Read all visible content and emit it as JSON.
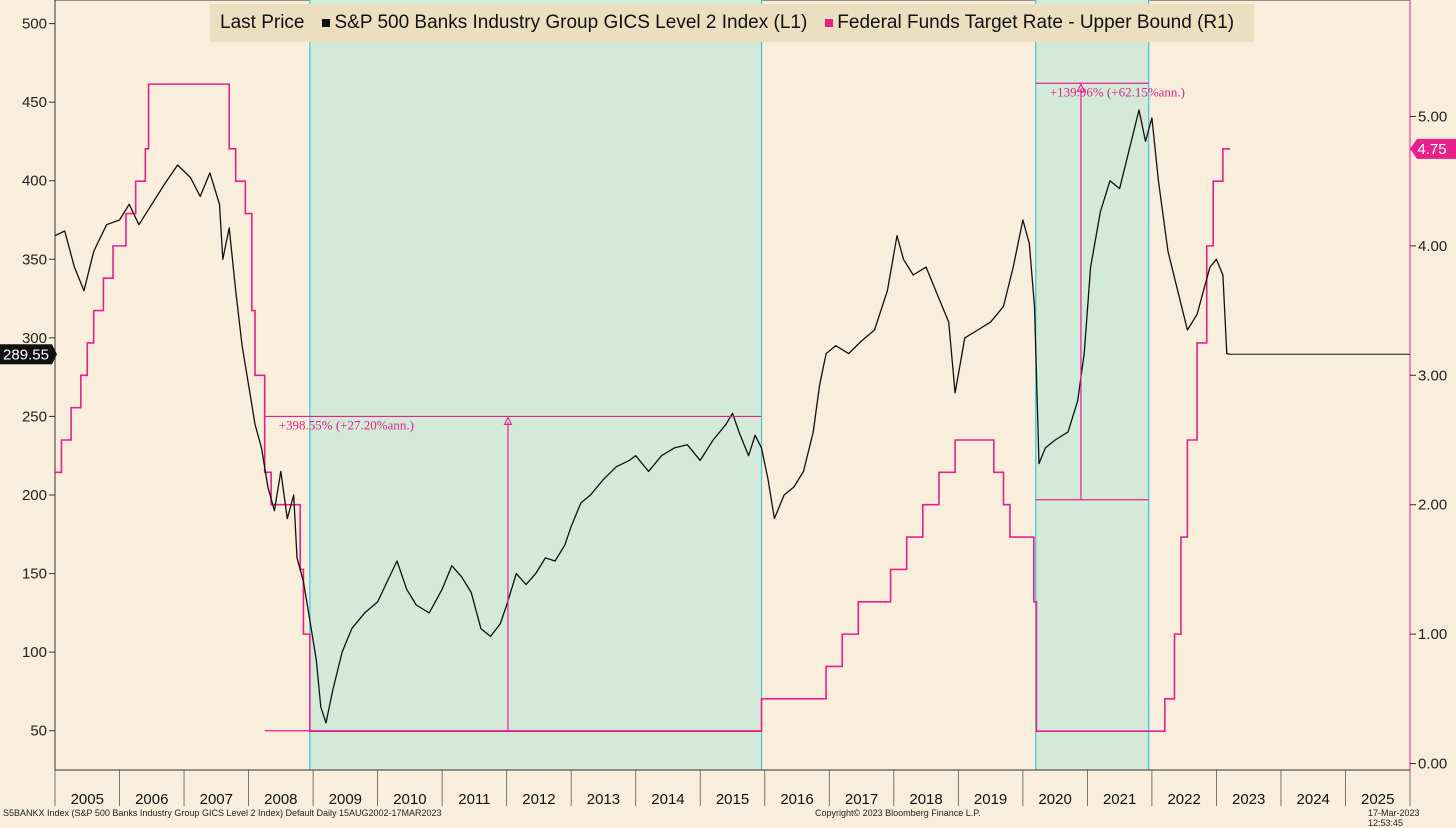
{
  "chart_data": {
    "type": "line",
    "legend": {
      "title": "Last Price",
      "series1_label": "S&P 500 Banks Industry Group GICS Level 2 Index  (L1)",
      "series2_label": "Federal Funds Target Rate - Upper Bound  (R1)"
    },
    "colors": {
      "index": "#111111",
      "rate": "#e8208c",
      "shade": "#d3ead8",
      "shade_border": "#3fc4d6",
      "background": "#f8eedb"
    },
    "x_axis": {
      "start": 2005,
      "end": 2026,
      "year_labels": [
        "2005",
        "2006",
        "2007",
        "2008",
        "2009",
        "2010",
        "2011",
        "2012",
        "2013",
        "2014",
        "2015",
        "2016",
        "2017",
        "2018",
        "2019",
        "2020",
        "2021",
        "2022",
        "2023",
        "2024",
        "2025"
      ]
    },
    "left_axis": {
      "ylim": [
        25,
        515
      ],
      "ticks": [
        "50",
        "100",
        "150",
        "200",
        "250",
        "300",
        "350",
        "400",
        "450",
        "500"
      ],
      "last_value_label": "289.55",
      "last_value": 289.55
    },
    "right_axis": {
      "ylim": [
        -0.05,
        5.9
      ],
      "ticks": [
        "0.00",
        "1.00",
        "2.00",
        "3.00",
        "4.00",
        "5.00"
      ],
      "last_value_label": "4.75",
      "last_value": 4.75
    },
    "shaded_periods": [
      {
        "start": 2008.95,
        "end": 2015.95
      },
      {
        "start": 2020.2,
        "end": 2021.95
      }
    ],
    "series": [
      {
        "name": "S&P 500 Banks Industry Group GICS Level 2 Index  (L1)",
        "points": [
          [
            2005.0,
            365
          ],
          [
            2005.15,
            368
          ],
          [
            2005.3,
            345
          ],
          [
            2005.45,
            330
          ],
          [
            2005.6,
            355
          ],
          [
            2005.8,
            372
          ],
          [
            2006.0,
            375
          ],
          [
            2006.15,
            385
          ],
          [
            2006.3,
            372
          ],
          [
            2006.5,
            385
          ],
          [
            2006.7,
            398
          ],
          [
            2006.9,
            410
          ],
          [
            2007.1,
            402
          ],
          [
            2007.25,
            390
          ],
          [
            2007.4,
            405
          ],
          [
            2007.55,
            385
          ],
          [
            2007.6,
            350
          ],
          [
            2007.7,
            370
          ],
          [
            2007.8,
            330
          ],
          [
            2007.9,
            295
          ],
          [
            2008.0,
            270
          ],
          [
            2008.1,
            245
          ],
          [
            2008.2,
            230
          ],
          [
            2008.3,
            205
          ],
          [
            2008.4,
            190
          ],
          [
            2008.5,
            215
          ],
          [
            2008.6,
            185
          ],
          [
            2008.7,
            200
          ],
          [
            2008.75,
            160
          ],
          [
            2008.85,
            145
          ],
          [
            2008.95,
            120
          ],
          [
            2009.05,
            95
          ],
          [
            2009.12,
            65
          ],
          [
            2009.2,
            55
          ],
          [
            2009.3,
            75
          ],
          [
            2009.45,
            100
          ],
          [
            2009.6,
            115
          ],
          [
            2009.8,
            125
          ],
          [
            2010.0,
            132
          ],
          [
            2010.15,
            145
          ],
          [
            2010.3,
            158
          ],
          [
            2010.45,
            140
          ],
          [
            2010.6,
            130
          ],
          [
            2010.8,
            125
          ],
          [
            2011.0,
            140
          ],
          [
            2011.15,
            155
          ],
          [
            2011.3,
            148
          ],
          [
            2011.45,
            138
          ],
          [
            2011.6,
            115
          ],
          [
            2011.75,
            110
          ],
          [
            2011.9,
            118
          ],
          [
            2012.0,
            130
          ],
          [
            2012.15,
            150
          ],
          [
            2012.3,
            143
          ],
          [
            2012.45,
            150
          ],
          [
            2012.6,
            160
          ],
          [
            2012.75,
            158
          ],
          [
            2012.9,
            168
          ],
          [
            2013.0,
            180
          ],
          [
            2013.15,
            195
          ],
          [
            2013.3,
            200
          ],
          [
            2013.5,
            210
          ],
          [
            2013.7,
            218
          ],
          [
            2013.9,
            222
          ],
          [
            2014.0,
            225
          ],
          [
            2014.2,
            215
          ],
          [
            2014.4,
            225
          ],
          [
            2014.6,
            230
          ],
          [
            2014.8,
            232
          ],
          [
            2015.0,
            222
          ],
          [
            2015.2,
            235
          ],
          [
            2015.4,
            245
          ],
          [
            2015.5,
            252
          ],
          [
            2015.6,
            240
          ],
          [
            2015.75,
            225
          ],
          [
            2015.85,
            238
          ],
          [
            2015.95,
            230
          ],
          [
            2016.05,
            210
          ],
          [
            2016.15,
            185
          ],
          [
            2016.3,
            200
          ],
          [
            2016.45,
            205
          ],
          [
            2016.6,
            215
          ],
          [
            2016.75,
            240
          ],
          [
            2016.85,
            270
          ],
          [
            2016.95,
            290
          ],
          [
            2017.1,
            295
          ],
          [
            2017.3,
            290
          ],
          [
            2017.5,
            298
          ],
          [
            2017.7,
            305
          ],
          [
            2017.9,
            330
          ],
          [
            2018.05,
            365
          ],
          [
            2018.15,
            350
          ],
          [
            2018.3,
            340
          ],
          [
            2018.5,
            345
          ],
          [
            2018.7,
            325
          ],
          [
            2018.85,
            310
          ],
          [
            2018.95,
            265
          ],
          [
            2019.1,
            300
          ],
          [
            2019.3,
            305
          ],
          [
            2019.5,
            310
          ],
          [
            2019.7,
            320
          ],
          [
            2019.85,
            345
          ],
          [
            2020.0,
            375
          ],
          [
            2020.1,
            360
          ],
          [
            2020.18,
            320
          ],
          [
            2020.25,
            220
          ],
          [
            2020.35,
            230
          ],
          [
            2020.5,
            235
          ],
          [
            2020.7,
            240
          ],
          [
            2020.85,
            260
          ],
          [
            2020.95,
            290
          ],
          [
            2021.05,
            345
          ],
          [
            2021.2,
            380
          ],
          [
            2021.35,
            400
          ],
          [
            2021.5,
            395
          ],
          [
            2021.65,
            420
          ],
          [
            2021.8,
            445
          ],
          [
            2021.9,
            425
          ],
          [
            2022.0,
            440
          ],
          [
            2022.1,
            400
          ],
          [
            2022.25,
            355
          ],
          [
            2022.4,
            330
          ],
          [
            2022.55,
            305
          ],
          [
            2022.7,
            315
          ],
          [
            2022.8,
            330
          ],
          [
            2022.9,
            345
          ],
          [
            2023.0,
            350
          ],
          [
            2023.1,
            340
          ],
          [
            2023.16,
            290
          ],
          [
            2023.21,
            289.55
          ]
        ],
        "last_flat_to": 2026.0
      },
      {
        "name": "Federal Funds Target Rate - Upper Bound  (R1)",
        "steps": [
          [
            2005.0,
            2.25
          ],
          [
            2005.1,
            2.5
          ],
          [
            2005.25,
            2.75
          ],
          [
            2005.4,
            3.0
          ],
          [
            2005.5,
            3.25
          ],
          [
            2005.6,
            3.5
          ],
          [
            2005.75,
            3.75
          ],
          [
            2005.9,
            4.0
          ],
          [
            2006.1,
            4.25
          ],
          [
            2006.25,
            4.5
          ],
          [
            2006.4,
            4.75
          ],
          [
            2006.45,
            5.25
          ],
          [
            2007.7,
            4.75
          ],
          [
            2007.8,
            4.5
          ],
          [
            2007.95,
            4.25
          ],
          [
            2008.05,
            3.5
          ],
          [
            2008.1,
            3.0
          ],
          [
            2008.25,
            2.25
          ],
          [
            2008.35,
            2.0
          ],
          [
            2008.8,
            1.5
          ],
          [
            2008.85,
            1.0
          ],
          [
            2008.95,
            0.25
          ],
          [
            2015.95,
            0.5
          ],
          [
            2016.95,
            0.75
          ],
          [
            2017.2,
            1.0
          ],
          [
            2017.45,
            1.25
          ],
          [
            2017.95,
            1.5
          ],
          [
            2018.2,
            1.75
          ],
          [
            2018.45,
            2.0
          ],
          [
            2018.7,
            2.25
          ],
          [
            2018.95,
            2.5
          ],
          [
            2019.55,
            2.25
          ],
          [
            2019.7,
            2.0
          ],
          [
            2019.8,
            1.75
          ],
          [
            2020.17,
            1.25
          ],
          [
            2020.21,
            0.25
          ],
          [
            2022.2,
            0.5
          ],
          [
            2022.35,
            1.0
          ],
          [
            2022.45,
            1.75
          ],
          [
            2022.55,
            2.5
          ],
          [
            2022.7,
            3.25
          ],
          [
            2022.85,
            4.0
          ],
          [
            2022.95,
            4.5
          ],
          [
            2023.1,
            4.75
          ],
          [
            2023.21,
            4.75
          ]
        ]
      }
    ],
    "annotations": [
      {
        "text": "+398.55% (+27.20%ann.)",
        "x_low": 2012.02,
        "low": 50,
        "high": 250,
        "x_from": 2008.25,
        "x_to": 2015.95
      },
      {
        "text": "+139.96% (+62.15%ann.)",
        "x_low": 2020.9,
        "low": 197,
        "high": 462,
        "x_from": 2020.2,
        "x_to": 2021.95
      }
    ]
  },
  "footer": {
    "left": "S5BANKX Index (S&P 500 Banks Industry Group GICS Level 2 Index) Default  Daily 15AUG2002-17MAR2023",
    "center": "Copyright© 2023 Bloomberg Finance L.P.",
    "right": "17-Mar-2023 12:53:45"
  }
}
